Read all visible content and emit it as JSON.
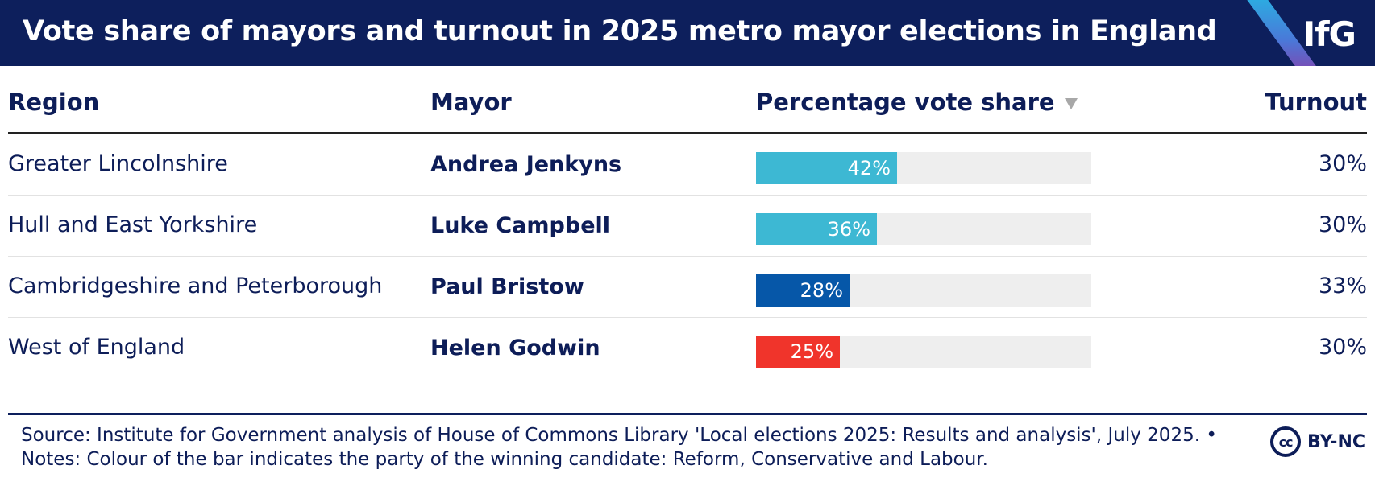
{
  "header": {
    "title": "Vote share of mayors and turnout in 2025 metro mayor elections in England",
    "logo": "IfG"
  },
  "columns": {
    "region": "Region",
    "mayor": "Mayor",
    "vote_share": "Percentage vote share",
    "turnout": "Turnout"
  },
  "colors": {
    "header_bg": "#0d1f5c",
    "text": "#0d1d58",
    "track": "#eeeeee",
    "reform": "#3db8d3",
    "conservative": "#0657a8",
    "labour": "#f0342b"
  },
  "chart_data": {
    "type": "table",
    "title": "Vote share of mayors and turnout in 2025 metro mayor elections in England",
    "value_max": 100,
    "rows": [
      {
        "region": "Greater Lincolnshire",
        "mayor": "Andrea Jenkyns",
        "vote_share": 42,
        "vote_share_label": "42%",
        "turnout": "30%",
        "party_color": "#3db8d3"
      },
      {
        "region": "Hull and East Yorkshire",
        "mayor": "Luke Campbell",
        "vote_share": 36,
        "vote_share_label": "36%",
        "turnout": "30%",
        "party_color": "#3db8d3"
      },
      {
        "region": "Cambridgeshire and Peterborough",
        "mayor": "Paul Bristow",
        "vote_share": 28,
        "vote_share_label": "28%",
        "turnout": "33%",
        "party_color": "#0657a8"
      },
      {
        "region": "West of England",
        "mayor": "Helen Godwin",
        "vote_share": 25,
        "vote_share_label": "25%",
        "turnout": "30%",
        "party_color": "#f0342b"
      }
    ]
  },
  "footer": {
    "source": "Source: Institute for Government analysis of House of Commons Library 'Local elections 2025: Results and analysis', July 2025. •",
    "notes": "Notes: Colour of the bar indicates the party of the winning candidate: Reform, Conservative and Labour.",
    "license_icon": "cc",
    "license": "BY-NC"
  }
}
